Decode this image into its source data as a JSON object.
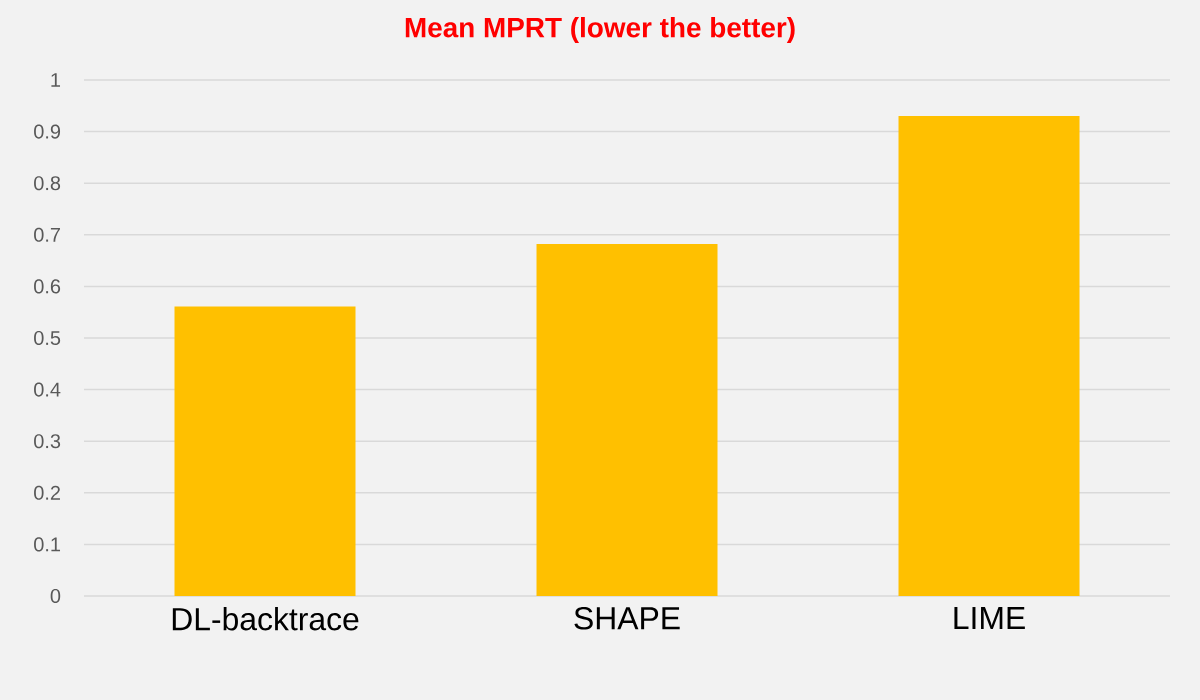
{
  "chart_data": {
    "type": "bar",
    "title": "Mean MPRT (lower the better)",
    "categories": [
      "DL-backtrace",
      "SHAPE",
      "LIME"
    ],
    "values": [
      0.561,
      0.682,
      0.93
    ],
    "color": "#ffc000",
    "ylim": [
      0,
      1
    ],
    "yticks": [
      0,
      0.1,
      0.2,
      0.3,
      0.4,
      0.5,
      0.6,
      0.7,
      0.8,
      0.9,
      1
    ],
    "grid": "y"
  }
}
